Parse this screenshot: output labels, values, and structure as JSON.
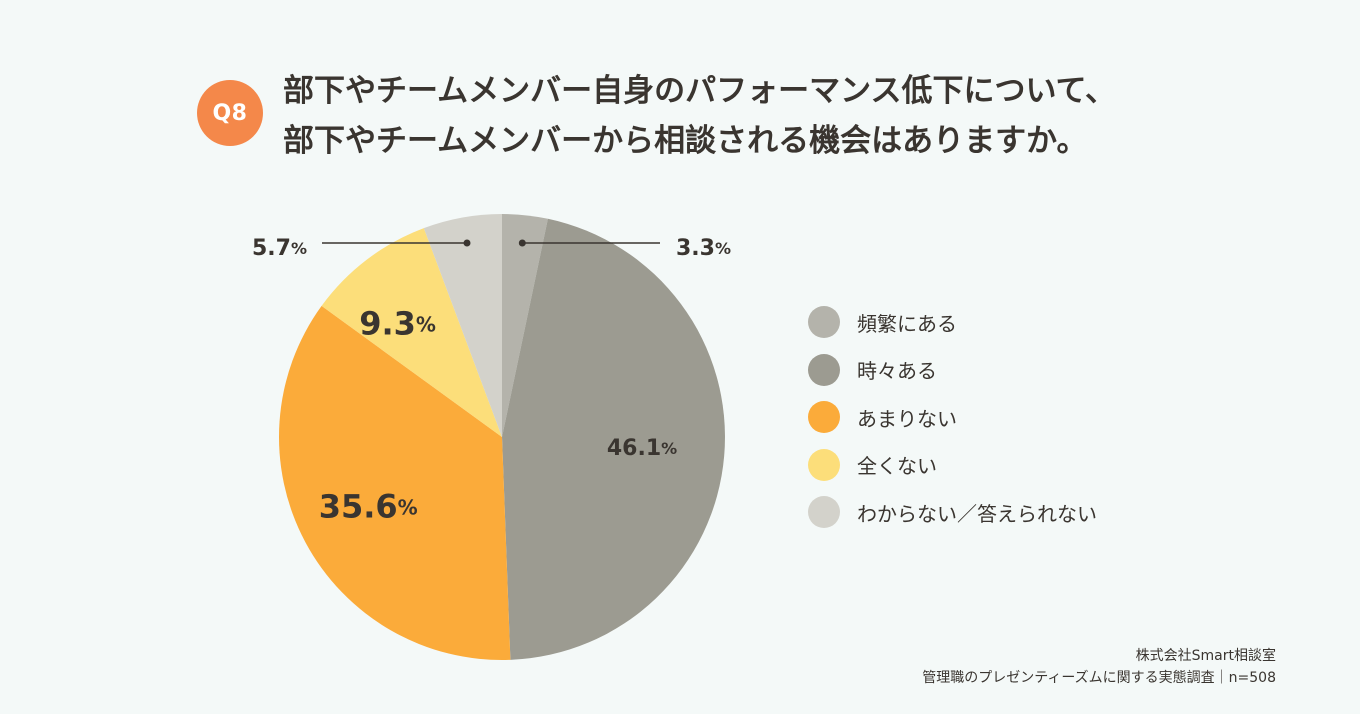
{
  "badge": "Q8",
  "title": {
    "line1": "部下やチームメンバー自身のパフォーマンス低下について、",
    "line2": "部下やチームメンバーから相談される機会はありますか。"
  },
  "chart_data": {
    "type": "pie",
    "title": "部下やチームメンバー自身のパフォーマンス低下について、部下やチームメンバーから相談される機会はありますか。",
    "unit": "%",
    "start": "12 o'clock, clockwise",
    "slices": [
      {
        "label": "頻繁にある",
        "value": 3.3,
        "display": "3.3",
        "color": "#b4b3ab"
      },
      {
        "label": "時々ある",
        "value": 46.1,
        "display": "46.1",
        "color": "#9c9b91"
      },
      {
        "label": "あまりない",
        "value": 35.6,
        "display": "35.6",
        "color": "#fbab3a"
      },
      {
        "label": "全くない",
        "value": 9.3,
        "display": "9.3",
        "color": "#fcde7a"
      },
      {
        "label": "わからない／答えられない",
        "value": 5.7,
        "display": "5.7",
        "color": "#d3d2cb"
      }
    ],
    "legend_position": "right"
  },
  "legend": {
    "items": [
      {
        "label": "頻繁にある",
        "color": "#b4b3ab"
      },
      {
        "label": "時々ある",
        "color": "#9c9b91"
      },
      {
        "label": "あまりない",
        "color": "#fbab3a"
      },
      {
        "label": "全くない",
        "color": "#fcde7a"
      },
      {
        "label": "わからない／答えられない",
        "color": "#d3d2cb"
      }
    ]
  },
  "source": {
    "line1": "株式会社Smart相談室",
    "line2": "管理職のプレゼンティーズムに関する実態調査｜n=508"
  }
}
